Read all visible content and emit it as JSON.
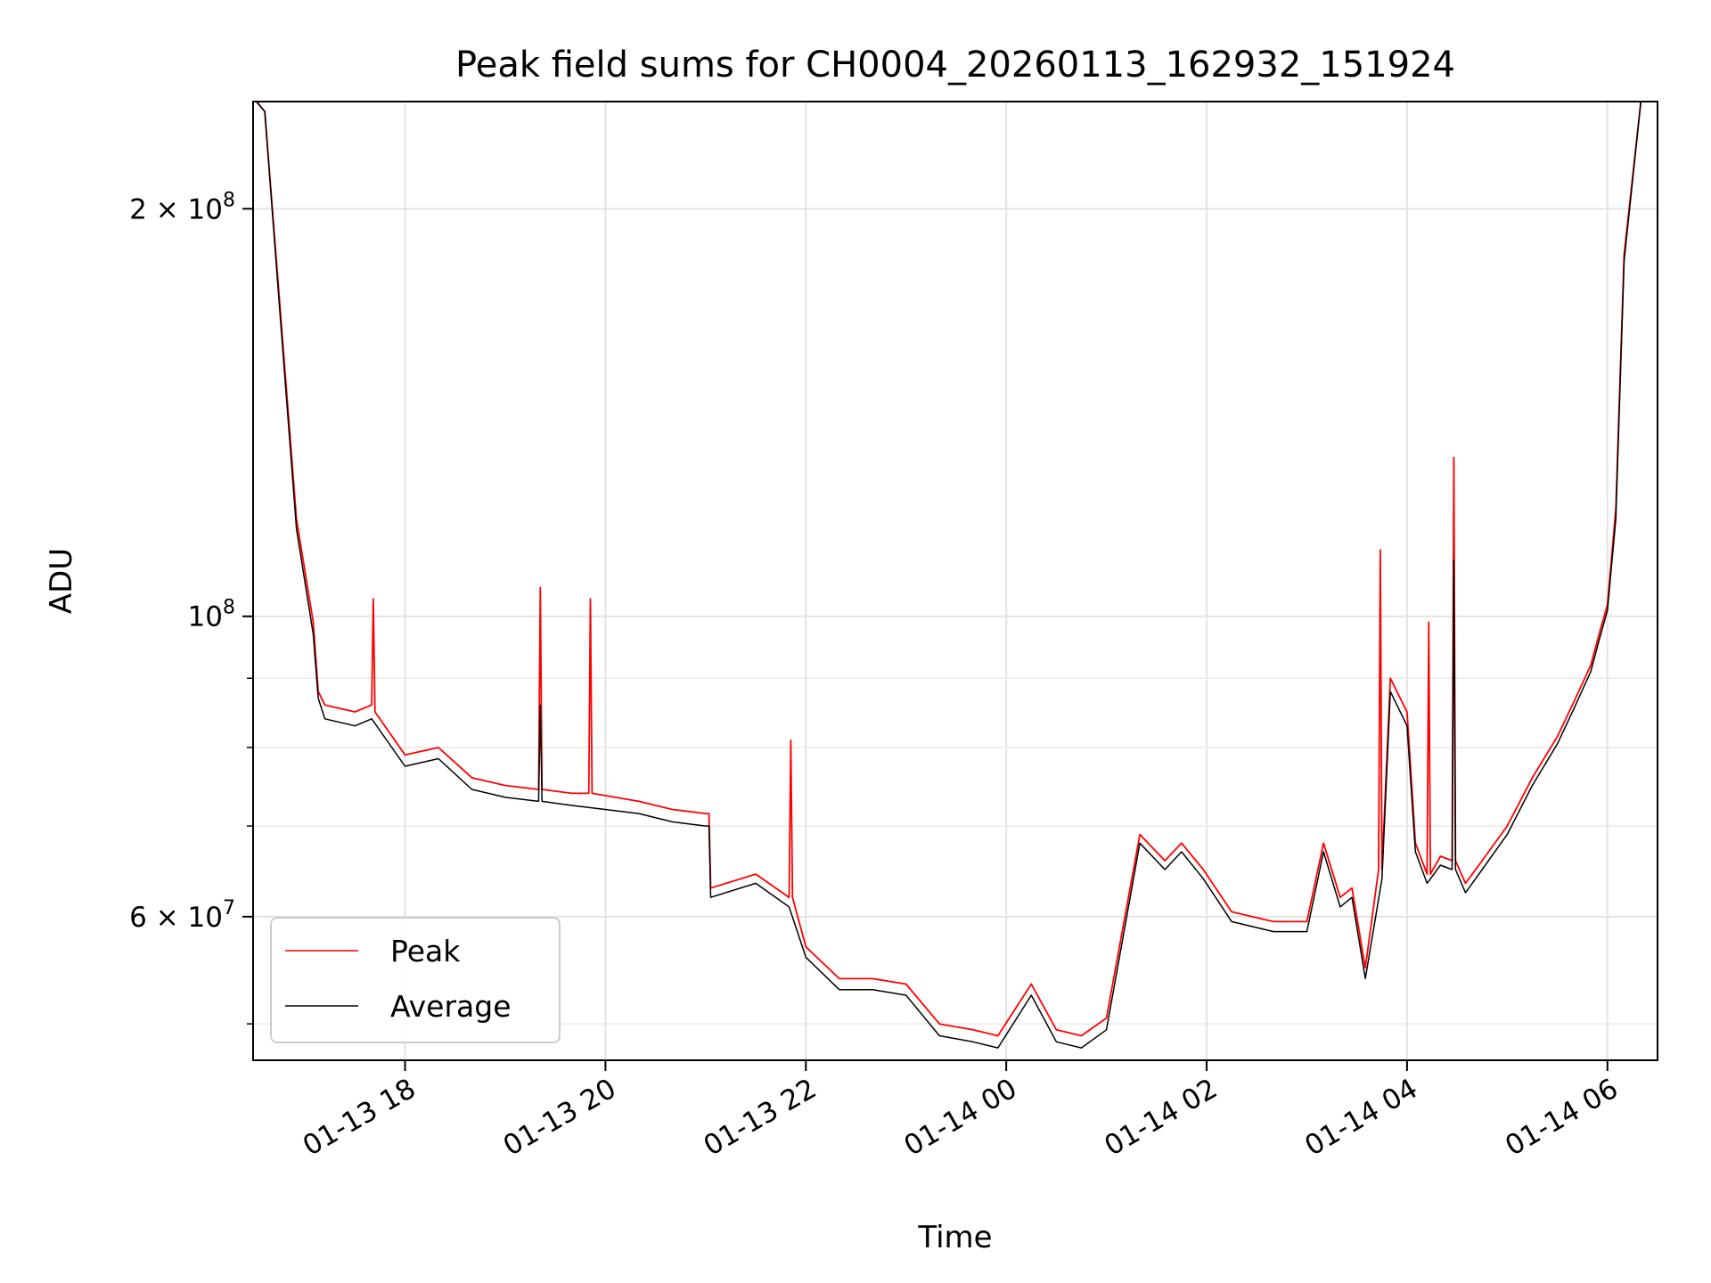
{
  "chart_data": {
    "type": "line",
    "title": "Peak field sums for CH0004_20260113_162932_151924",
    "xlabel": "Time",
    "ylabel": "ADU",
    "yscale": "log",
    "xlim": [
      "2026-01-13 16:29",
      "2026-01-14 06:30"
    ],
    "ylim": [
      47000000,
      240000000
    ],
    "grid": true,
    "legend_position": "lower-left",
    "x_ticks": [
      {
        "value": "2026-01-13 18:00",
        "label": "01-13 18"
      },
      {
        "value": "2026-01-13 20:00",
        "label": "01-13 20"
      },
      {
        "value": "2026-01-13 22:00",
        "label": "01-13 22"
      },
      {
        "value": "2026-01-14 00:00",
        "label": "01-14 00"
      },
      {
        "value": "2026-01-14 02:00",
        "label": "01-14 02"
      },
      {
        "value": "2026-01-14 04:00",
        "label": "01-14 04"
      },
      {
        "value": "2026-01-14 06:00",
        "label": "01-14 06"
      }
    ],
    "y_ticks_major": [
      {
        "value": 60000000,
        "label_base": "6 × 10",
        "label_exp": "7"
      },
      {
        "value": 100000000,
        "label_base": "10",
        "label_exp": "8"
      },
      {
        "value": 200000000,
        "label_base": "2 × 10",
        "label_exp": "8"
      }
    ],
    "y_minor_ticks": [
      50000000,
      70000000,
      80000000,
      90000000
    ],
    "series": [
      {
        "name": "Peak",
        "color": "#ff0000",
        "x": [
          "2026-01-13 16:31",
          "2026-01-13 16:36",
          "2026-01-13 16:45",
          "2026-01-13 16:55",
          "2026-01-13 17:05",
          "2026-01-13 17:08",
          "2026-01-13 17:12",
          "2026-01-13 17:30",
          "2026-01-13 17:40",
          "2026-01-13 17:41",
          "2026-01-13 17:42",
          "2026-01-13 18:00",
          "2026-01-13 18:20",
          "2026-01-13 18:40",
          "2026-01-13 19:00",
          "2026-01-13 19:20",
          "2026-01-13 19:21",
          "2026-01-13 19:22",
          "2026-01-13 19:40",
          "2026-01-13 19:50",
          "2026-01-13 19:51",
          "2026-01-13 19:52",
          "2026-01-13 20:20",
          "2026-01-13 20:40",
          "2026-01-13 21:00",
          "2026-01-13 21:02",
          "2026-01-13 21:03",
          "2026-01-13 21:30",
          "2026-01-13 21:50",
          "2026-01-13 21:51",
          "2026-01-13 21:52",
          "2026-01-13 22:00",
          "2026-01-13 22:20",
          "2026-01-13 22:40",
          "2026-01-13 23:00",
          "2026-01-13 23:20",
          "2026-01-13 23:40",
          "2026-01-13 23:55",
          "2026-01-14 00:15",
          "2026-01-14 00:30",
          "2026-01-14 00:45",
          "2026-01-14 01:00",
          "2026-01-14 01:20",
          "2026-01-14 01:35",
          "2026-01-14 01:45",
          "2026-01-14 01:58",
          "2026-01-14 02:15",
          "2026-01-14 02:40",
          "2026-01-14 03:00",
          "2026-01-14 03:10",
          "2026-01-14 03:20",
          "2026-01-14 03:27",
          "2026-01-14 03:35",
          "2026-01-14 03:43",
          "2026-01-14 03:44",
          "2026-01-14 03:45",
          "2026-01-14 03:50",
          "2026-01-14 04:00",
          "2026-01-14 04:05",
          "2026-01-14 04:12",
          "2026-01-14 04:13",
          "2026-01-14 04:14",
          "2026-01-14 04:20",
          "2026-01-14 04:27",
          "2026-01-14 04:28",
          "2026-01-14 04:29",
          "2026-01-14 04:35",
          "2026-01-14 04:45",
          "2026-01-14 05:00",
          "2026-01-14 05:15",
          "2026-01-14 05:30",
          "2026-01-14 05:40",
          "2026-01-14 05:50",
          "2026-01-14 05:55",
          "2026-01-14 06:00",
          "2026-01-14 06:05",
          "2026-01-14 06:10",
          "2026-01-14 06:20"
        ],
        "values": [
          240000000,
          236000000,
          170000000,
          118000000,
          99000000,
          88000000,
          86000000,
          85000000,
          86000000,
          103000000,
          85000000,
          79000000,
          80000000,
          76000000,
          75000000,
          74500000,
          105000000,
          74500000,
          74000000,
          74000000,
          103000000,
          74000000,
          73000000,
          72000000,
          71500000,
          71500000,
          63000000,
          64500000,
          62000000,
          81000000,
          62000000,
          57000000,
          54000000,
          54000000,
          53500000,
          50000000,
          49500000,
          49000000,
          53500000,
          49500000,
          49000000,
          50500000,
          69000000,
          66000000,
          68000000,
          65000000,
          60500000,
          59500000,
          59500000,
          68000000,
          62000000,
          63000000,
          55000000,
          65000000,
          112000000,
          65000000,
          90000000,
          85000000,
          68000000,
          64500000,
          99000000,
          64500000,
          66500000,
          66000000,
          131000000,
          66000000,
          63500000,
          66000000,
          70000000,
          76000000,
          81500000,
          86500000,
          92000000,
          97000000,
          102000000,
          120000000,
          185000000,
          240000000
        ]
      },
      {
        "name": "Average",
        "color": "#000000",
        "x": [
          "2026-01-13 16:31",
          "2026-01-13 16:36",
          "2026-01-13 16:45",
          "2026-01-13 16:55",
          "2026-01-13 17:05",
          "2026-01-13 17:08",
          "2026-01-13 17:12",
          "2026-01-13 17:30",
          "2026-01-13 17:40",
          "2026-01-13 18:00",
          "2026-01-13 18:20",
          "2026-01-13 18:40",
          "2026-01-13 19:00",
          "2026-01-13 19:20",
          "2026-01-13 19:21",
          "2026-01-13 19:22",
          "2026-01-13 19:40",
          "2026-01-13 20:20",
          "2026-01-13 20:40",
          "2026-01-13 21:00",
          "2026-01-13 21:02",
          "2026-01-13 21:03",
          "2026-01-13 21:30",
          "2026-01-13 21:50",
          "2026-01-13 22:00",
          "2026-01-13 22:20",
          "2026-01-13 22:40",
          "2026-01-13 23:00",
          "2026-01-13 23:20",
          "2026-01-13 23:40",
          "2026-01-13 23:55",
          "2026-01-14 00:15",
          "2026-01-14 00:30",
          "2026-01-14 00:45",
          "2026-01-14 01:00",
          "2026-01-14 01:20",
          "2026-01-14 01:35",
          "2026-01-14 01:45",
          "2026-01-14 01:58",
          "2026-01-14 02:15",
          "2026-01-14 02:40",
          "2026-01-14 03:00",
          "2026-01-14 03:10",
          "2026-01-14 03:20",
          "2026-01-14 03:27",
          "2026-01-14 03:35",
          "2026-01-14 03:45",
          "2026-01-14 03:50",
          "2026-01-14 04:00",
          "2026-01-14 04:05",
          "2026-01-14 04:12",
          "2026-01-14 04:20",
          "2026-01-14 04:27",
          "2026-01-14 04:28",
          "2026-01-14 04:29",
          "2026-01-14 04:35",
          "2026-01-14 04:45",
          "2026-01-14 05:00",
          "2026-01-14 05:15",
          "2026-01-14 05:30",
          "2026-01-14 05:40",
          "2026-01-14 05:50",
          "2026-01-14 05:55",
          "2026-01-14 06:00",
          "2026-01-14 06:05",
          "2026-01-14 06:10",
          "2026-01-14 06:20"
        ],
        "values": [
          240000000,
          236000000,
          168000000,
          116000000,
          97000000,
          87000000,
          84000000,
          83000000,
          84000000,
          77500000,
          78500000,
          74500000,
          73500000,
          73000000,
          86000000,
          73000000,
          72500000,
          71500000,
          70500000,
          70000000,
          70000000,
          62000000,
          63500000,
          61000000,
          56000000,
          53000000,
          53000000,
          52500000,
          49000000,
          48500000,
          48000000,
          52500000,
          48500000,
          48000000,
          49500000,
          68000000,
          65000000,
          67000000,
          64000000,
          59500000,
          58500000,
          58500000,
          67000000,
          61000000,
          62000000,
          54000000,
          64000000,
          88000000,
          83000000,
          67000000,
          63500000,
          65500000,
          65000000,
          110000000,
          65000000,
          62500000,
          65000000,
          69000000,
          75000000,
          80500000,
          85500000,
          91000000,
          96000000,
          101000000,
          118000000,
          183000000,
          240000000
        ]
      }
    ]
  }
}
